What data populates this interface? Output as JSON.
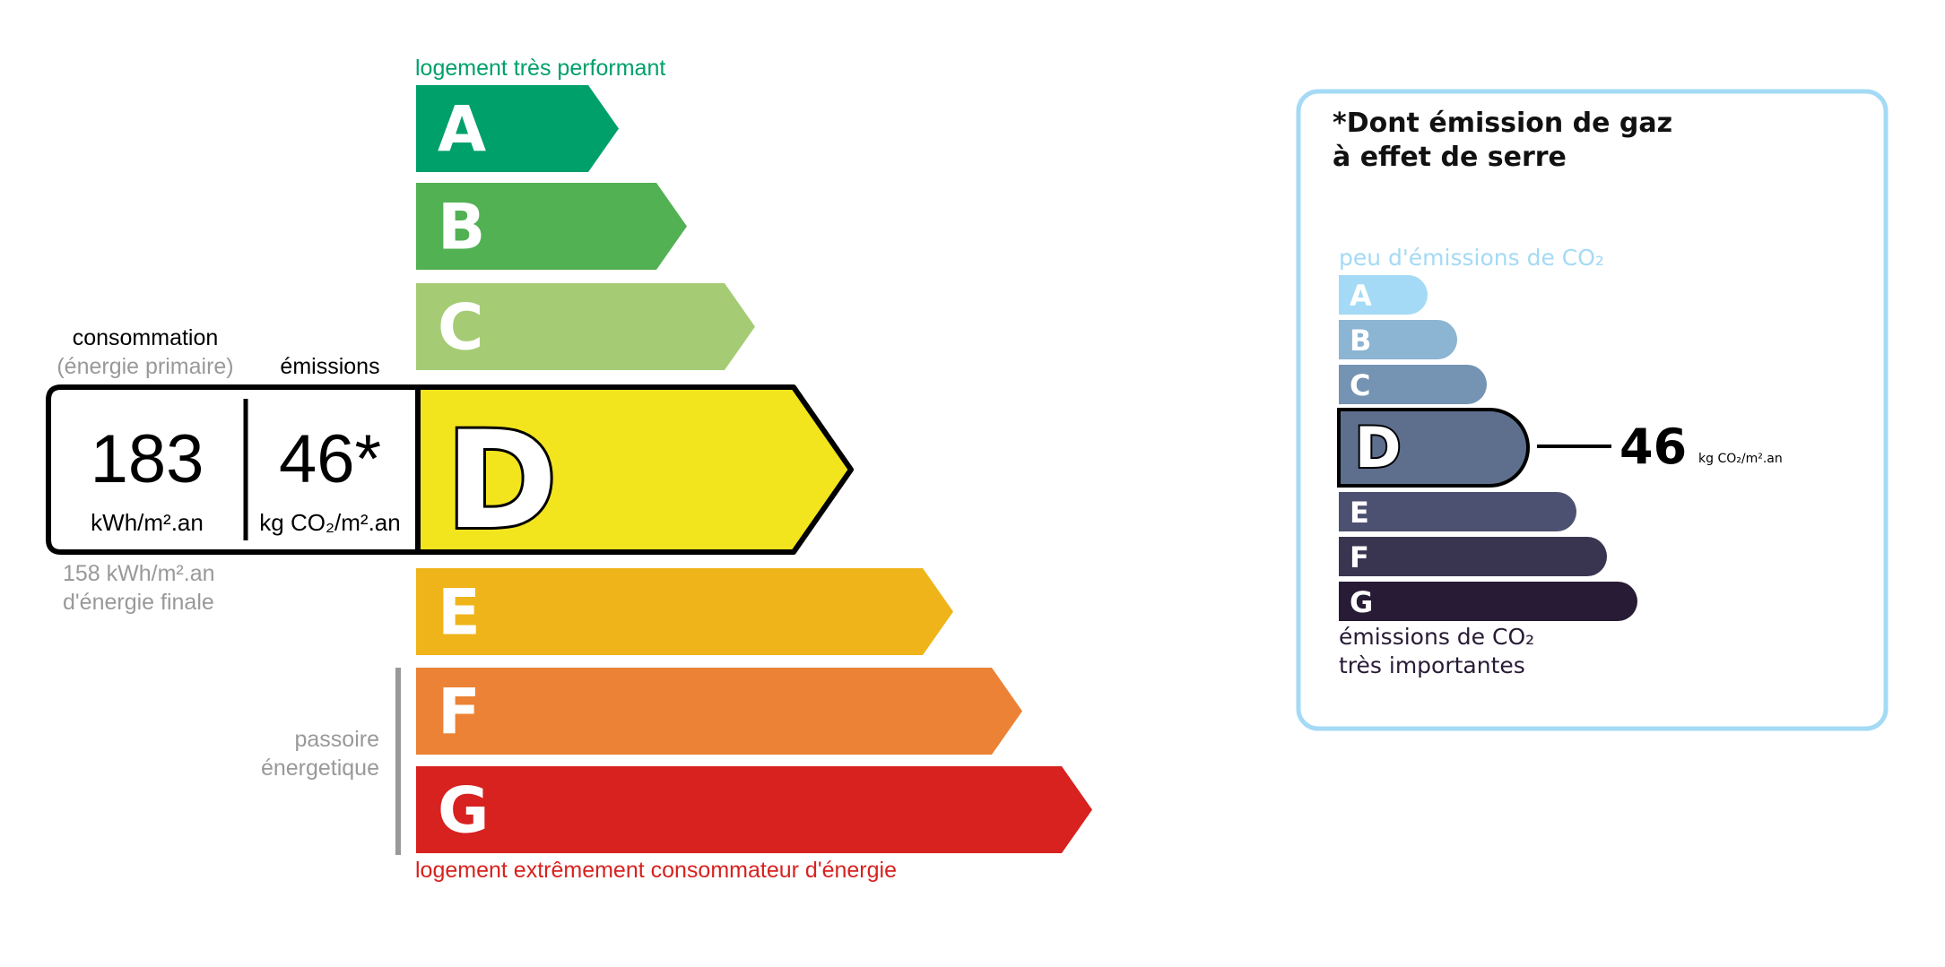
{
  "energy": {
    "top_label": "logement très performant",
    "bottom_label": "logement extrêmement consommateur d'énergie",
    "passoire_line1": "passoire",
    "passoire_line2": "énergetique",
    "classes": [
      {
        "letter": "A",
        "color": "#00a06b"
      },
      {
        "letter": "B",
        "color": "#52b153"
      },
      {
        "letter": "C",
        "color": "#a5cc74"
      },
      {
        "letter": "D",
        "color": "#f2e51d"
      },
      {
        "letter": "E",
        "color": "#efb41a"
      },
      {
        "letter": "F",
        "color": "#eb8235"
      },
      {
        "letter": "G",
        "color": "#d7221f"
      }
    ],
    "current_class": "D",
    "consumption_header": "consommation",
    "consumption_subheader": "(énergie primaire)",
    "emissions_header": "émissions",
    "consumption_value": "183",
    "consumption_unit": "kWh/m².an",
    "emissions_value": "46*",
    "emissions_unit": "kg CO₂/m².an",
    "final_energy_line1": "158 kWh/m².an",
    "final_energy_line2": "d'énergie finale"
  },
  "ges": {
    "title_line1": "*Dont émission de gaz",
    "title_line2": "à effet de serre",
    "top_label": "peu d'émissions de CO₂",
    "bottom_label_line1": "émissions de CO₂",
    "bottom_label_line2": "très importantes",
    "classes": [
      {
        "letter": "A",
        "color": "#a4daf5"
      },
      {
        "letter": "B",
        "color": "#8cb4d3"
      },
      {
        "letter": "C",
        "color": "#7593b3"
      },
      {
        "letter": "D",
        "color": "#5e6f8e"
      },
      {
        "letter": "E",
        "color": "#4d5171"
      },
      {
        "letter": "F",
        "color": "#393551"
      },
      {
        "letter": "G",
        "color": "#281b35"
      }
    ],
    "current_class": "D",
    "value": "46",
    "unit": "kg CO₂/m².an",
    "border_color": "#a4daf5"
  }
}
